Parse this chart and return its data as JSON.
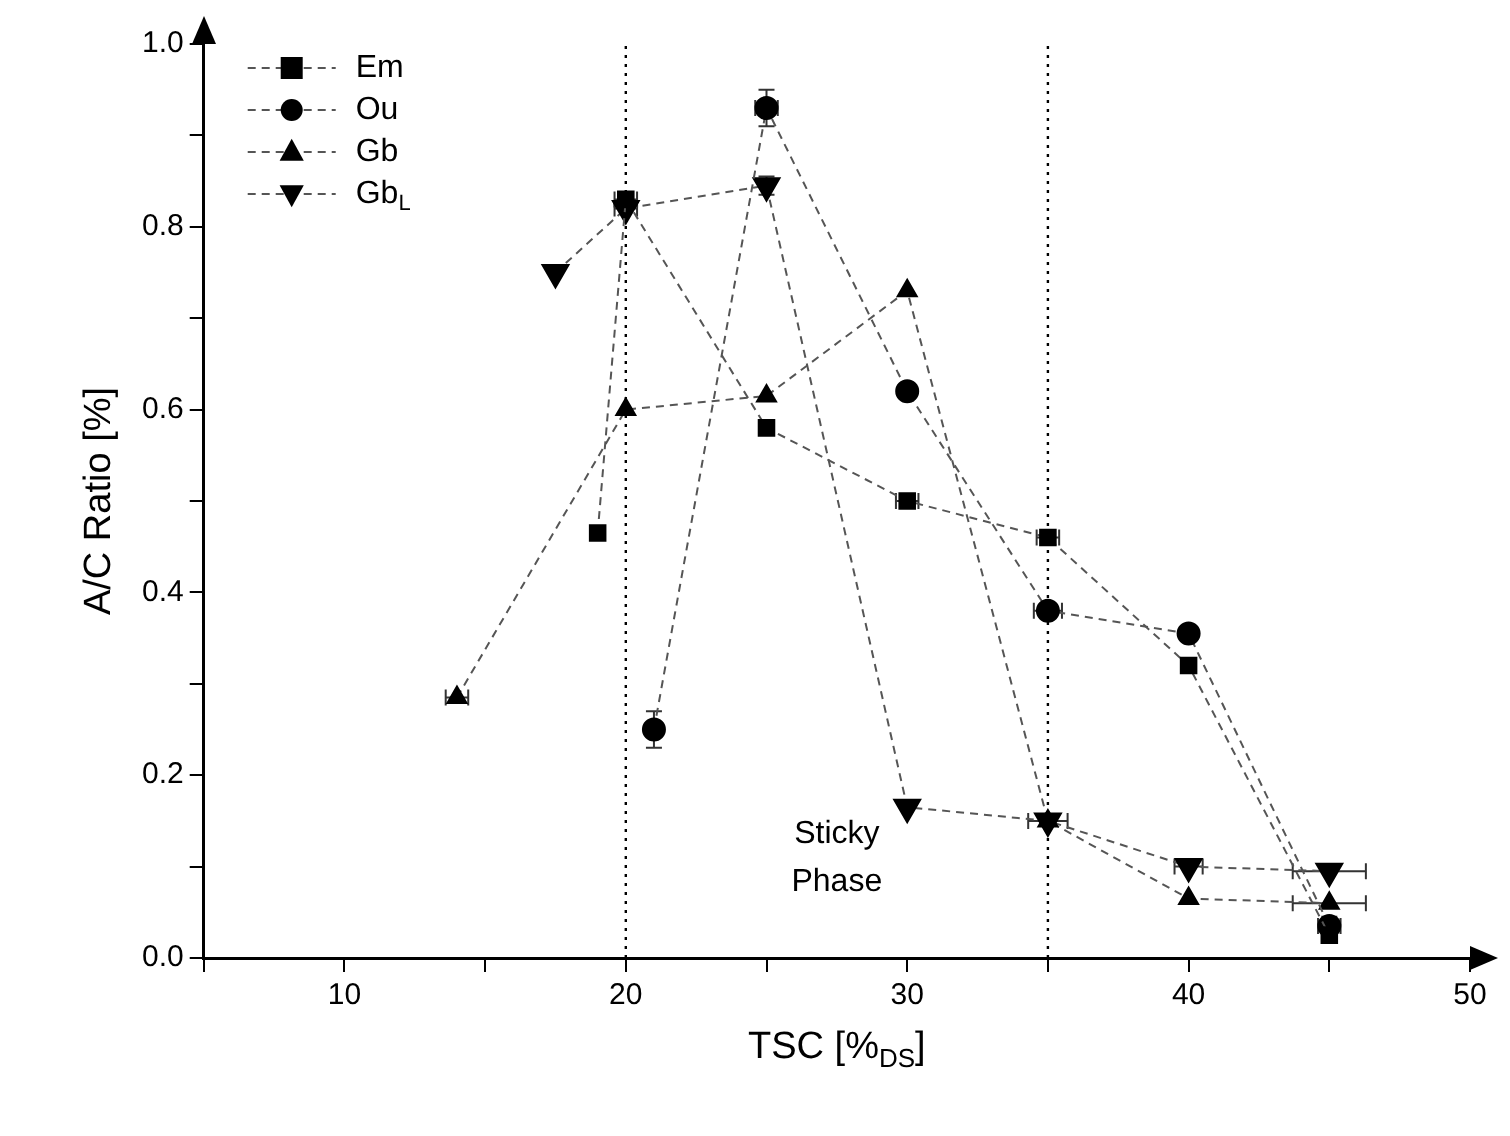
{
  "chart_data": {
    "type": "line",
    "xlabel": "TSC [%$_{DS}$]",
    "ylabel": "A/C Ratio [%]",
    "xlim": [
      5,
      50
    ],
    "xticks": [
      {
        "value": 5,
        "label": null
      },
      10,
      {
        "value": 15,
        "label": null
      },
      20,
      {
        "value": 25,
        "label": null
      },
      30,
      {
        "value": 35,
        "label": null
      },
      40,
      {
        "value": 45,
        "label": null
      },
      50
    ],
    "ylim": [
      0,
      1.0
    ],
    "yticks": [
      {
        "value": 0,
        "label": "0.0"
      },
      {
        "value": 0.1,
        "label": null
      },
      0.2,
      {
        "value": 0.3,
        "label": null
      },
      0.4,
      {
        "value": 0.5,
        "label": null
      },
      0.6,
      {
        "value": 0.7,
        "label": null
      },
      0.8,
      {
        "value": 0.9,
        "label": null
      },
      {
        "value": 1,
        "label": "1.0"
      }
    ],
    "grid": false,
    "legend": "top left",
    "line_style": "dashed",
    "ref_lines": [
      {
        "axis": "x",
        "value": 20,
        "line_style": "dotted",
        "color": "#000000"
      },
      {
        "axis": "x",
        "value": 35,
        "line_style": "dotted",
        "color": "#000000"
      }
    ],
    "annotations": [
      "Sticky Phase"
    ],
    "series": [
      {
        "name": "Em",
        "color": "#000000",
        "marker": "square",
        "x": [
          19,
          20,
          25,
          30,
          35,
          40,
          45
        ],
        "values": [
          0.465,
          0.83,
          0.58,
          0.5,
          0.46,
          0.32,
          0.025
        ],
        "xerrors": [
          null,
          0.4,
          null,
          0.4,
          0.4,
          null,
          null
        ]
      },
      {
        "name": "Ou",
        "color": "#000000",
        "marker": "circle",
        "x": [
          21,
          25,
          30,
          35,
          40,
          45
        ],
        "values": [
          0.25,
          0.93,
          0.62,
          0.38,
          0.355,
          0.035
        ],
        "errors": [
          0.02,
          0.02,
          null,
          null,
          null,
          0.01
        ],
        "xerrors": [
          null,
          0.4,
          null,
          0.5,
          null,
          0.4
        ]
      },
      {
        "name": "Gb",
        "color": "#000000",
        "marker": "triangle",
        "x": [
          14,
          20,
          25,
          30,
          35,
          40,
          45
        ],
        "values": [
          0.285,
          0.6,
          0.615,
          0.73,
          0.15,
          0.065,
          0.06
        ],
        "xerrors": [
          0.4,
          null,
          null,
          null,
          0.7,
          null,
          1.3
        ]
      },
      {
        "name": "Gb$_{L}$",
        "color": "#000000",
        "marker": "triangle-down",
        "x": [
          17.5,
          20,
          25,
          30,
          35,
          40,
          45
        ],
        "values": [
          0.75,
          0.82,
          0.845,
          0.165,
          0.15,
          0.1,
          0.095
        ],
        "errors": [
          null,
          null,
          0.01,
          null,
          null,
          null,
          null
        ],
        "xerrors": [
          null,
          0.4,
          null,
          null,
          null,
          0.5,
          1.3
        ]
      }
    ]
  }
}
